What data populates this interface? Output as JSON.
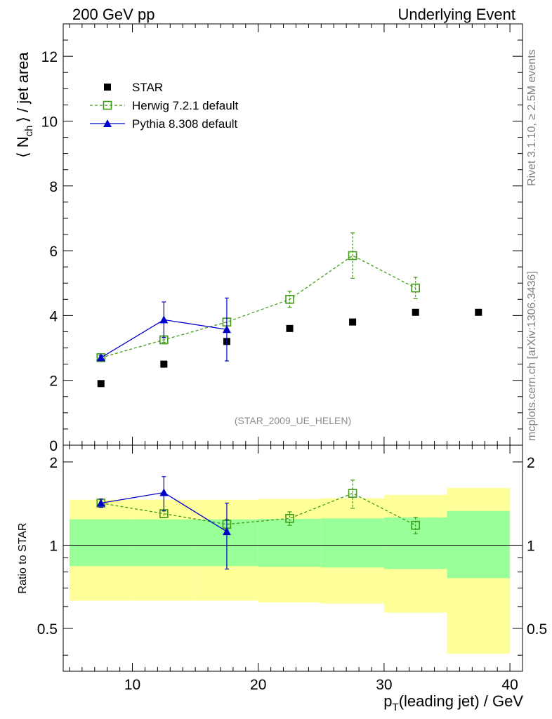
{
  "header": {
    "left": "200 GeV pp",
    "right": "Underlying Event"
  },
  "side_labels": {
    "rivet": "Rivet 3.1.10, ≥ 2.5M events",
    "mcplots": "mcplots.cern.ch [arXiv:1306.3436]"
  },
  "analysis_tag": "(STAR_2009_UE_HELEN)",
  "colors": {
    "star": "#000000",
    "herwig": "#3f9a17",
    "pythia": "#0000cc",
    "band_inner": "#99ff99",
    "band_outer": "#ffff99"
  },
  "chart_data": [
    {
      "type": "scatter",
      "panel": "main",
      "ylabel_main": "⟨ N",
      "ylabel_sub": "ch",
      "ylabel_rest": "⟩ / jet area",
      "xlim": [
        4.5,
        41
      ],
      "ylim": [
        0,
        13
      ],
      "y_ticks": [
        0,
        2,
        4,
        6,
        8,
        10,
        12
      ],
      "legend_position": "top-left",
      "series": [
        {
          "name": "STAR",
          "style": "square-filled",
          "x": [
            7.5,
            12.5,
            17.5,
            22.5,
            27.5,
            32.5,
            37.5
          ],
          "y": [
            1.9,
            2.5,
            3.2,
            3.6,
            3.8,
            4.1,
            4.1
          ]
        },
        {
          "name": "Herwig 7.2.1 default",
          "style": "square-open-dashed",
          "x": [
            7.5,
            12.5,
            17.5,
            22.5,
            27.5,
            32.5
          ],
          "y": [
            2.7,
            3.25,
            3.8,
            4.5,
            5.85,
            4.85
          ],
          "yerr": [
            0.07,
            0.08,
            0.12,
            0.25,
            0.7,
            0.33
          ]
        },
        {
          "name": "Pythia 8.308 default",
          "style": "triangle-solid",
          "x": [
            7.5,
            12.5,
            17.5
          ],
          "y": [
            2.7,
            3.87,
            3.57
          ],
          "yerr": [
            0.07,
            0.55,
            0.97
          ]
        }
      ]
    },
    {
      "type": "scatter",
      "panel": "ratio",
      "ylabel": "Ratio to STAR",
      "xlabel_main": "p",
      "xlabel_sub": "T",
      "xlabel_rest": "(leading jet) / GeV",
      "xlim": [
        4.5,
        41
      ],
      "ylim": [
        0.35,
        2.3
      ],
      "log_y": true,
      "y_ticks": [
        0.5,
        1,
        2
      ],
      "y_tick_labels": [
        "0.5",
        "1",
        "2"
      ],
      "x_ticks": [
        10,
        20,
        30,
        40
      ],
      "bands": [
        {
          "x0": 5,
          "x1": 10,
          "inner": [
            0.84,
            1.24
          ],
          "outer": [
            0.63,
            1.46
          ]
        },
        {
          "x0": 10,
          "x1": 15,
          "inner": [
            0.84,
            1.24
          ],
          "outer": [
            0.63,
            1.46
          ]
        },
        {
          "x0": 15,
          "x1": 20,
          "inner": [
            0.84,
            1.24
          ],
          "outer": [
            0.63,
            1.46
          ]
        },
        {
          "x0": 20,
          "x1": 25,
          "inner": [
            0.835,
            1.245
          ],
          "outer": [
            0.62,
            1.47
          ]
        },
        {
          "x0": 25,
          "x1": 30,
          "inner": [
            0.83,
            1.25
          ],
          "outer": [
            0.615,
            1.48
          ]
        },
        {
          "x0": 30,
          "x1": 35,
          "inner": [
            0.82,
            1.26
          ],
          "outer": [
            0.57,
            1.52
          ]
        },
        {
          "x0": 35,
          "x1": 40,
          "inner": [
            0.76,
            1.33
          ],
          "outer": [
            0.405,
            1.61
          ]
        }
      ],
      "series": [
        {
          "name": "Herwig 7.2.1 default",
          "style": "square-open-dashed",
          "x": [
            7.5,
            12.5,
            17.5,
            22.5,
            27.5,
            32.5
          ],
          "y": [
            1.42,
            1.3,
            1.19,
            1.25,
            1.54,
            1.18
          ],
          "yerr": [
            0.04,
            0.04,
            0.05,
            0.07,
            0.18,
            0.08
          ]
        },
        {
          "name": "Pythia 8.308 default",
          "style": "triangle-solid",
          "x": [
            7.5,
            12.5,
            17.5
          ],
          "y": [
            1.42,
            1.55,
            1.12
          ],
          "yerr": [
            0.05,
            0.22,
            0.3
          ]
        }
      ]
    }
  ]
}
